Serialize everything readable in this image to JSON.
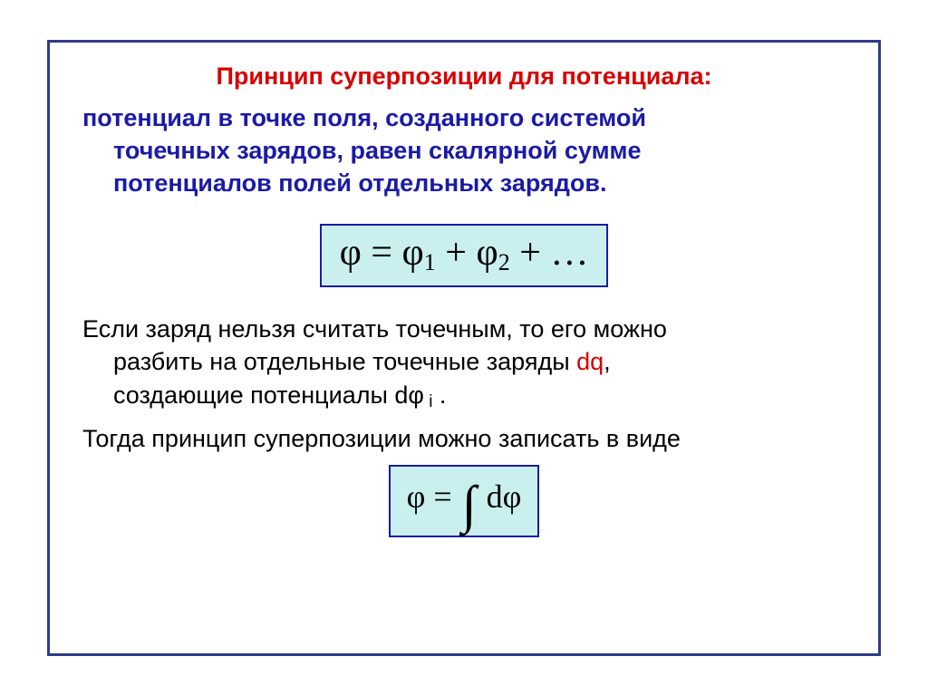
{
  "colors": {
    "frame_border": "#2f3a8a",
    "title_red": "#d80000",
    "text_blue": "#1a1aa8",
    "text_black": "#000000",
    "box_bg": "#c9f0ef",
    "box_border": "#1a1aa8"
  },
  "title": "Принцип суперпозиции для потенциала:",
  "blue_para": {
    "line1": "потенциал в точке поля, созданного системой",
    "line2": "точечных зарядов, равен скалярной сумме",
    "line3": "потенциалов полей отдельных зарядов."
  },
  "formula1": "φ = φ₁ + φ₂ + …",
  "black_para1": {
    "line1_a": "Если заряд нельзя считать точечным, то его можно",
    "line2_a": "разбить на отдельные точечные заряды ",
    "dq": "dq",
    "line2_b": ",",
    "line3_a": "создающие потенциалы dφ",
    "sub_i": " i",
    "line3_b": " ."
  },
  "black_para2": "Тогда принцип суперпозиции можно записать в виде",
  "formula2": {
    "lhs": "φ = ",
    "int": "∫",
    "rhs": " dφ"
  }
}
